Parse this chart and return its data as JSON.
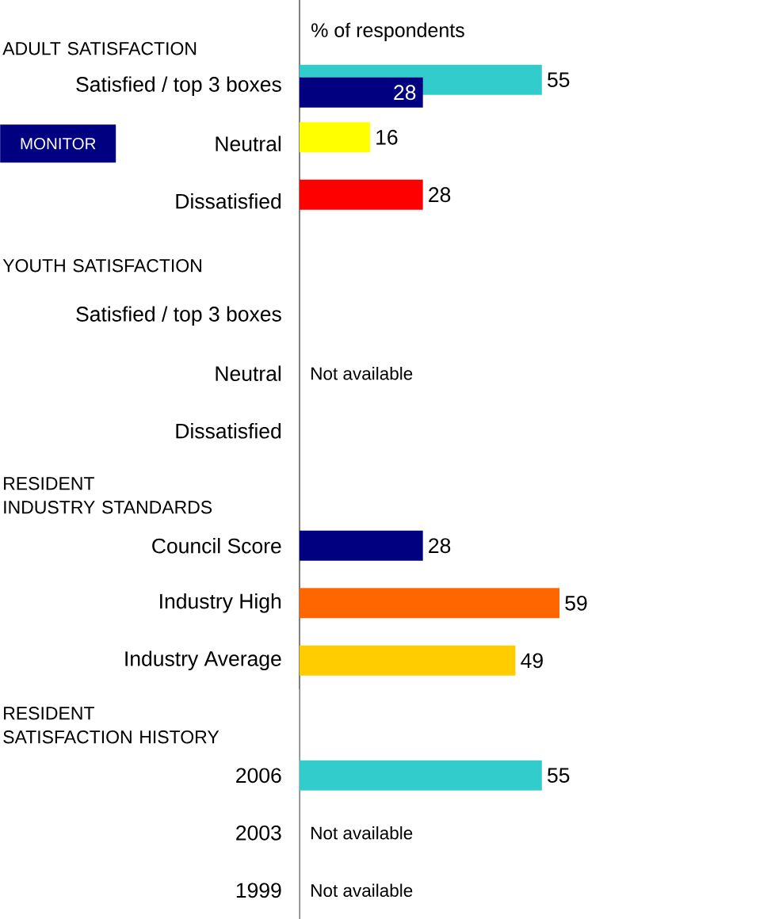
{
  "chart_data": [
    {
      "type": "bar",
      "orientation": "horizontal",
      "title": "ADULT SATISFACTION",
      "xlabel": "% of respondents",
      "categories": [
        "Satisfied / top 3 boxes",
        "Neutral",
        "Dissatisfied"
      ],
      "series": [
        {
          "colors": [
            "#33cccc",
            "#ffff00",
            "#ff0000"
          ],
          "values": [
            55,
            16,
            28
          ]
        },
        {
          "name": "MONITOR",
          "color": "#000080",
          "values": [
            28,
            null,
            null
          ]
        }
      ],
      "tick_labels": "y",
      "data_labels": true,
      "legend": "left"
    },
    {
      "type": "other",
      "title": "YOUTH SATISFACTION",
      "categories": [
        "Satisfied / top 3 boxes",
        "Neutral",
        "Dissatisfied"
      ],
      "annotations": [
        "Not available"
      ]
    },
    {
      "type": "bar",
      "orientation": "horizontal",
      "title": "RESIDENT\nINDUSTRY STANDARDS",
      "categories": [
        "Council Score",
        "Industry High",
        "Industry Average"
      ],
      "values": [
        28,
        59,
        49
      ],
      "colors": [
        "#000080",
        "#ff6600",
        "#ffcc00"
      ],
      "tick_labels": "y",
      "data_labels": true
    },
    {
      "type": "bar",
      "orientation": "horizontal",
      "title": "RESIDENT\nSATISFACTION HISTORY",
      "categories": [
        "2006",
        "2003",
        "1999"
      ],
      "values": [
        55,
        null,
        null
      ],
      "color": "#33cccc",
      "tick_labels": "y",
      "data_labels": true,
      "annotations": [
        "Not available",
        "Not available"
      ]
    }
  ]
}
